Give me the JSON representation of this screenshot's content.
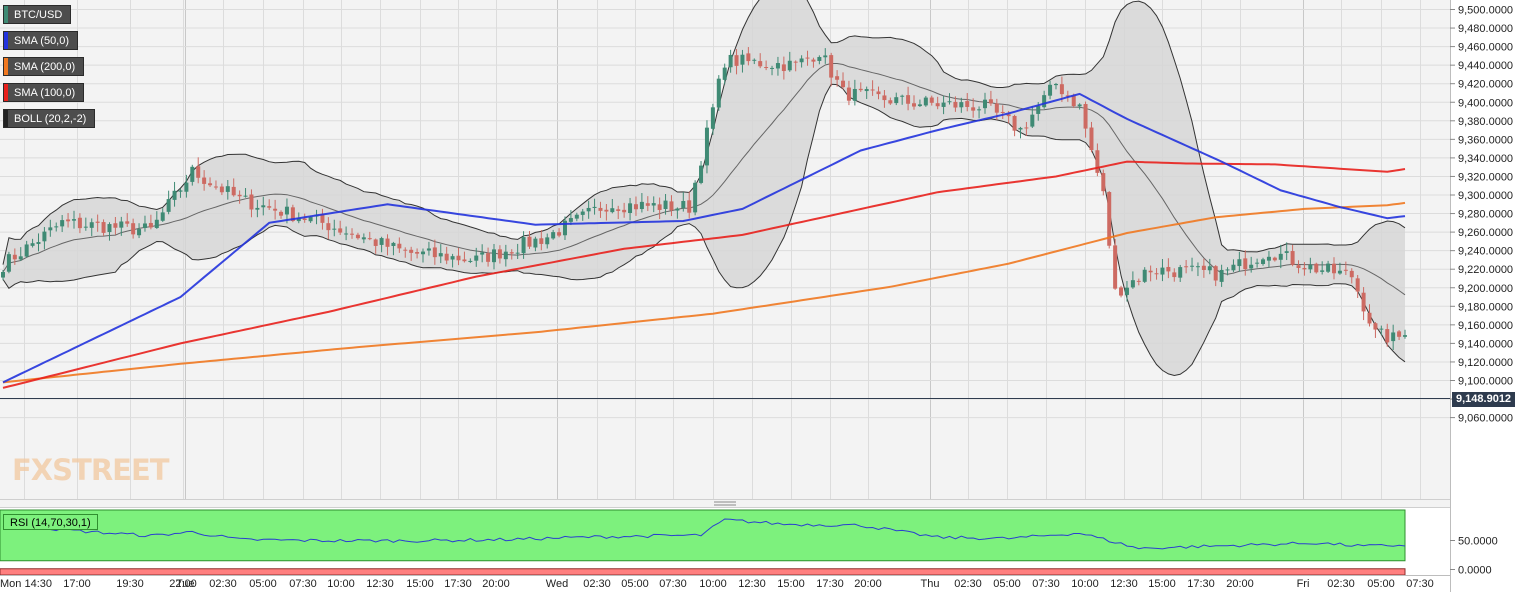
{
  "colors": {
    "up": "#3f8a74",
    "down": "#cd6a62",
    "sma50": "#2233dd",
    "sma200": "#f07820",
    "sma100": "#e8201c",
    "boll": "#333333",
    "boll_fill": "#d6d6d6",
    "rsi_line": "#2a3fd0",
    "rsi_over": "#7df17d",
    "rsi_under": "#ff7f7f"
  },
  "legend": [
    {
      "label": "BTC/USD",
      "swatch": "#3f8a74"
    },
    {
      "label": "SMA (50,0)",
      "swatch": "#2233dd"
    },
    {
      "label": "SMA (200,0)",
      "swatch": "#f07820"
    },
    {
      "label": "SMA (100,0)",
      "swatch": "#e8201c"
    },
    {
      "label": "BOLL (20,2,-2)",
      "swatch": "#222222"
    }
  ],
  "watermark": "FXSTREET",
  "rsi_label": "RSI (14,70,30,1)",
  "current_price": "9,148.9012",
  "chart_data": {
    "type": "candlestick",
    "title": "",
    "symbol": "BTC/USD",
    "ylim": [
      9050,
      9510
    ],
    "y_ticks": [
      "9,060.0000",
      "9,080.0000",
      "9,100.0000",
      "9,120.0000",
      "9,140.0000",
      "9,160.0000",
      "9,180.0000",
      "9,200.0000",
      "9,220.0000",
      "9,240.0000",
      "9,260.0000",
      "9,280.0000",
      "9,300.0000",
      "9,320.0000",
      "9,340.0000",
      "9,360.0000",
      "9,380.0000",
      "9,400.0000",
      "9,420.0000",
      "9,440.0000",
      "9,460.0000",
      "9,480.0000",
      "9,500.0000"
    ],
    "x_ticks": [
      "Mon 14:30",
      "17:00",
      "19:30",
      "22:00",
      "Tue",
      "02:30",
      "05:00",
      "07:30",
      "10:00",
      "12:30",
      "15:00",
      "17:30",
      "20:00",
      "Wed",
      "02:30",
      "05:00",
      "07:30",
      "10:00",
      "12:30",
      "15:00",
      "17:30",
      "20:00",
      "Thu",
      "02:30",
      "05:00",
      "07:30",
      "10:00",
      "12:30",
      "15:00",
      "17:30",
      "20:00",
      "Fri",
      "02:30",
      "05:00",
      "07:30"
    ],
    "last_price": 9148.9012,
    "close_anchors": [
      [
        0,
        9225
      ],
      [
        10,
        9270
      ],
      [
        25,
        9262
      ],
      [
        32,
        9325
      ],
      [
        40,
        9295
      ],
      [
        53,
        9272
      ],
      [
        68,
        9238
      ],
      [
        80,
        9230
      ],
      [
        92,
        9255
      ],
      [
        102,
        9290
      ],
      [
        116,
        9287
      ],
      [
        122,
        9445
      ],
      [
        134,
        9440
      ],
      [
        138,
        9455
      ],
      [
        142,
        9410
      ],
      [
        153,
        9400
      ],
      [
        166,
        9395
      ],
      [
        172,
        9370
      ],
      [
        178,
        9420
      ],
      [
        182,
        9395
      ],
      [
        186,
        9300
      ],
      [
        188,
        9195
      ],
      [
        194,
        9220
      ],
      [
        206,
        9215
      ],
      [
        214,
        9240
      ],
      [
        221,
        9222
      ],
      [
        228,
        9213
      ],
      [
        232,
        9150
      ],
      [
        235,
        9145
      ],
      [
        237,
        9148.9
      ]
    ],
    "sma50_anchors": [
      [
        0,
        9098
      ],
      [
        30,
        9190
      ],
      [
        45,
        9270
      ],
      [
        65,
        9290
      ],
      [
        90,
        9268
      ],
      [
        115,
        9272
      ],
      [
        125,
        9285
      ],
      [
        145,
        9348
      ],
      [
        158,
        9370
      ],
      [
        170,
        9388
      ],
      [
        182,
        9409
      ],
      [
        190,
        9382
      ],
      [
        206,
        9336
      ],
      [
        216,
        9305
      ],
      [
        226,
        9287
      ],
      [
        234,
        9275
      ]
    ],
    "sma100_anchors": [
      [
        0,
        9092
      ],
      [
        30,
        9140
      ],
      [
        55,
        9174
      ],
      [
        80,
        9212
      ],
      [
        105,
        9242
      ],
      [
        125,
        9257
      ],
      [
        158,
        9303
      ],
      [
        178,
        9320
      ],
      [
        190,
        9336
      ],
      [
        200,
        9334
      ],
      [
        215,
        9333
      ],
      [
        234,
        9325
      ]
    ],
    "sma200_anchors": [
      [
        0,
        9098
      ],
      [
        30,
        9118
      ],
      [
        60,
        9136
      ],
      [
        90,
        9152
      ],
      [
        120,
        9172
      ],
      [
        150,
        9201
      ],
      [
        170,
        9226
      ],
      [
        190,
        9259
      ],
      [
        205,
        9276
      ],
      [
        220,
        9285
      ],
      [
        234,
        9289
      ]
    ],
    "rsi": {
      "ylim": [
        0,
        100
      ],
      "y_ticks": [
        "0.0000",
        "50.0000"
      ],
      "upper_band": 70,
      "lower_band": 30,
      "anchors": [
        [
          0,
          72
        ],
        [
          8,
          68
        ],
        [
          15,
          62
        ],
        [
          25,
          55
        ],
        [
          32,
          62
        ],
        [
          40,
          48
        ],
        [
          55,
          46
        ],
        [
          70,
          46
        ],
        [
          85,
          48
        ],
        [
          100,
          53
        ],
        [
          118,
          56
        ],
        [
          122,
          84
        ],
        [
          132,
          76
        ],
        [
          145,
          74
        ],
        [
          158,
          52
        ],
        [
          170,
          50
        ],
        [
          182,
          60
        ],
        [
          192,
          32
        ],
        [
          210,
          38
        ],
        [
          222,
          42
        ],
        [
          230,
          36
        ],
        [
          237,
          38
        ]
      ]
    }
  }
}
